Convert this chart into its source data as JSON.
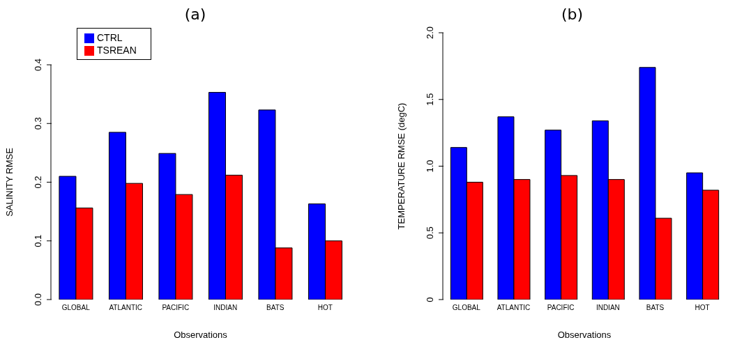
{
  "chart_data": [
    {
      "type": "bar",
      "title": "(a)",
      "xlabel": "Observations",
      "ylabel": "SALINITY RMSE",
      "categories": [
        "GLOBAL",
        "ATLANTIC",
        "PACIFIC",
        "INDIAN",
        "BATS",
        "HOT"
      ],
      "series": [
        {
          "name": "CTRL",
          "color": "#0000ff",
          "values": [
            0.21,
            0.285,
            0.249,
            0.353,
            0.323,
            0.163
          ]
        },
        {
          "name": "TSREAN",
          "color": "#ff0000",
          "values": [
            0.156,
            0.198,
            0.179,
            0.212,
            0.088,
            0.1
          ]
        }
      ],
      "ylim": [
        0,
        0.4
      ],
      "yticks": [
        {
          "value": 0,
          "label": "0.0"
        },
        0.1,
        0.2,
        0.3,
        0.4
      ],
      "grid": false,
      "legend": "top left"
    },
    {
      "type": "bar",
      "title": "(b)",
      "xlabel": "Observations",
      "ylabel": "TEMPERATURE RMSE (degC)",
      "categories": [
        "GLOBAL",
        "ATLANTIC",
        "PACIFIC",
        "INDIAN",
        "BATS",
        "HOT"
      ],
      "series": [
        {
          "color": "#0000ff",
          "values": [
            1.14,
            1.37,
            1.27,
            1.34,
            1.74,
            0.95
          ]
        },
        {
          "color": "#ff0000",
          "values": [
            0.88,
            0.9,
            0.93,
            0.9,
            0.61,
            0.82
          ]
        }
      ],
      "ylim": [
        0,
        2
      ],
      "yticks": [
        {
          "value": 0,
          "label": "0"
        },
        0.5,
        {
          "value": 1,
          "label": "1.0"
        },
        1.5,
        {
          "value": 2,
          "label": "2.0"
        }
      ],
      "grid": false,
      "legend": false
    }
  ]
}
